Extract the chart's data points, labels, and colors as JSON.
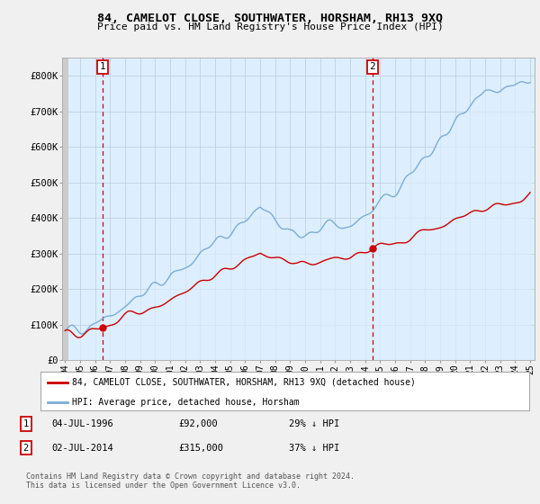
{
  "title": "84, CAMELOT CLOSE, SOUTHWATER, HORSHAM, RH13 9XQ",
  "subtitle": "Price paid vs. HM Land Registry's House Price Index (HPI)",
  "ylim": [
    0,
    850000
  ],
  "yticks": [
    0,
    100000,
    200000,
    300000,
    400000,
    500000,
    600000,
    700000,
    800000
  ],
  "ytick_labels": [
    "£0",
    "£100K",
    "£200K",
    "£300K",
    "£400K",
    "£500K",
    "£600K",
    "£700K",
    "£800K"
  ],
  "sale1_date": 1996.5,
  "sale1_price": 92000,
  "sale1_label": "1",
  "sale2_date": 2014.5,
  "sale2_price": 315000,
  "sale2_label": "2",
  "hpi_color": "#7aadd4",
  "hpi_fill_color": "#ddeeff",
  "price_color": "#cc0000",
  "dashed_color": "#cc0000",
  "legend_price_label": "84, CAMELOT CLOSE, SOUTHWATER, HORSHAM, RH13 9XQ (detached house)",
  "legend_hpi_label": "HPI: Average price, detached house, Horsham",
  "note1_box": "1",
  "note1_date": "04-JUL-1996",
  "note1_price": "£92,000",
  "note1_pct": "29% ↓ HPI",
  "note2_box": "2",
  "note2_date": "02-JUL-2014",
  "note2_price": "£315,000",
  "note2_pct": "37% ↓ HPI",
  "footer": "Contains HM Land Registry data © Crown copyright and database right 2024.\nThis data is licensed under the Open Government Licence v3.0.",
  "bg_color": "#f0f0f0",
  "plot_bg_color": "#ddeeff",
  "grid_color": "#bbccdd"
}
